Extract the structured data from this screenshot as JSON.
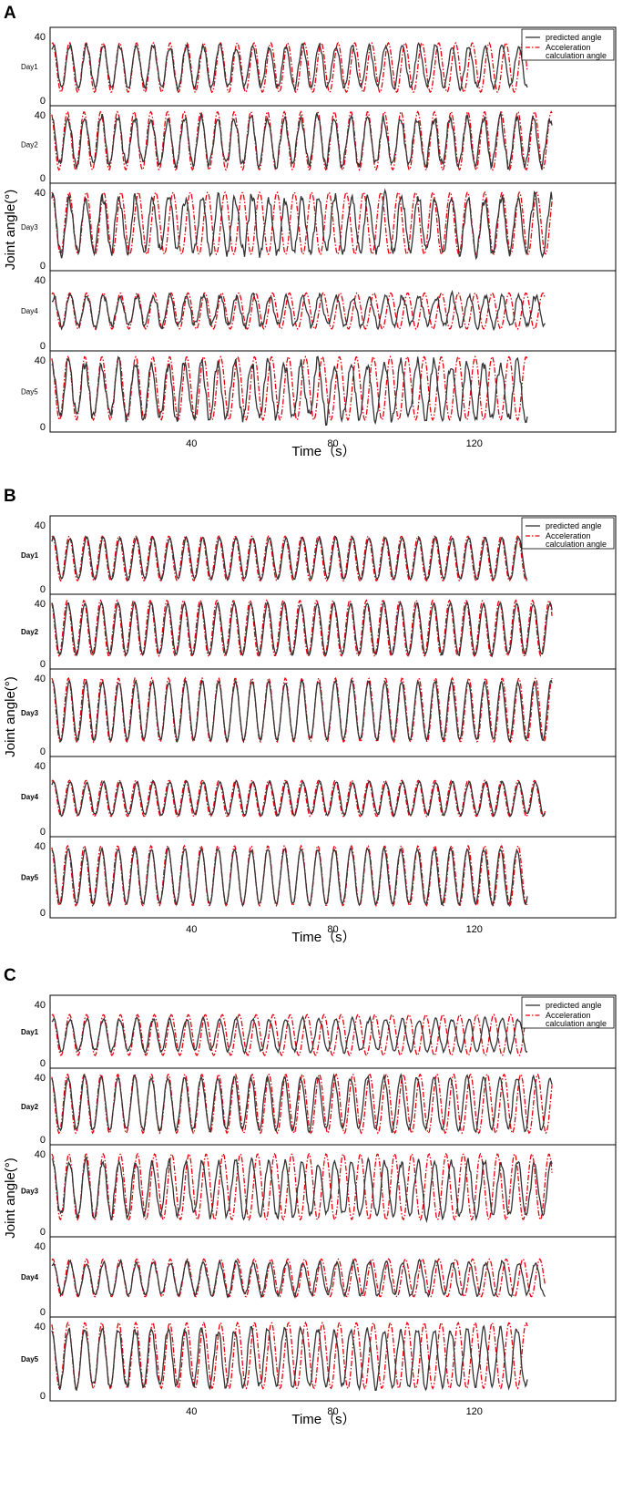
{
  "chart_data": [
    {
      "type": "line",
      "panel_label": "A",
      "xlabel": "Time（s）",
      "ylabel": "Joint angle(°)",
      "xlim": [
        0,
        160
      ],
      "x_ticks": [
        40,
        80,
        120
      ],
      "y_ticks": [
        0,
        40
      ],
      "legend": {
        "position": "top-right",
        "entries": [
          "predicted angle",
          "Acceleration calculation angle"
        ],
        "entry_lines": [
          [
            "predicted angle"
          ],
          [
            "Acceleration",
            "calculation angle"
          ]
        ]
      },
      "series_styles": {
        "predicted": "#333333",
        "calculated": "#e8000b"
      },
      "subplots": [
        {
          "day": "Day1",
          "ylim": [
            0,
            40
          ],
          "period": 4.7,
          "calc_period": 4.75,
          "duration": 135,
          "pred_range": [
            8,
            34
          ],
          "calc_range": [
            5,
            36
          ],
          "noise": 2.5,
          "phase": 0.3
        },
        {
          "day": "Day2",
          "ylim": [
            0,
            40
          ],
          "period": 4.7,
          "calc_period": 4.72,
          "duration": 142,
          "pred_range": [
            8,
            38
          ],
          "calc_range": [
            5,
            42
          ],
          "noise": 4,
          "phase": 1.0
        },
        {
          "day": "Day3",
          "ylim": [
            0,
            40
          ],
          "period": 4.7,
          "calc_period": 4.9,
          "duration": 142,
          "pred_range": [
            7,
            37
          ],
          "calc_range": [
            6,
            40
          ],
          "noise": 4.5,
          "phase": 0.6
        },
        {
          "day": "Day4",
          "ylim": [
            0,
            40
          ],
          "period": 4.7,
          "calc_period": 4.78,
          "duration": 140,
          "pred_range": [
            12,
            30
          ],
          "calc_range": [
            10,
            32
          ],
          "noise": 3,
          "phase": 0.2
        },
        {
          "day": "Day5",
          "ylim": [
            0,
            40
          ],
          "period": 4.7,
          "calc_period": 4.8,
          "duration": 135,
          "pred_range": [
            5,
            38
          ],
          "calc_range": [
            4,
            42
          ],
          "noise": 5,
          "phase": 0.9
        }
      ]
    },
    {
      "type": "line",
      "panel_label": "B",
      "xlabel": "Time（s）",
      "ylabel": "Joint angle(°)",
      "xlim": [
        0,
        160
      ],
      "x_ticks": [
        40,
        80,
        120
      ],
      "y_ticks": [
        0,
        40
      ],
      "legend": {
        "position": "top-right",
        "entries": [
          "predicted angle",
          "Acceleration calculation angle"
        ],
        "entry_lines": [
          [
            "predicted angle"
          ],
          [
            "Acceleration",
            "calculation angle"
          ]
        ]
      },
      "series_styles": {
        "predicted": "#333333",
        "calculated": "#e8000b"
      },
      "subplots": [
        {
          "day": "Day1",
          "ylim": [
            0,
            40
          ],
          "period": 4.7,
          "calc_period": 4.7,
          "duration": 135,
          "pred_range": [
            6,
            32
          ],
          "calc_range": [
            5,
            33
          ],
          "noise": 0.8,
          "phase": 0.3
        },
        {
          "day": "Day2",
          "ylim": [
            0,
            40
          ],
          "period": 4.7,
          "calc_period": 4.7,
          "duration": 142,
          "pred_range": [
            6,
            40
          ],
          "calc_range": [
            5,
            42
          ],
          "noise": 1,
          "phase": 1.0
        },
        {
          "day": "Day3",
          "ylim": [
            0,
            40
          ],
          "period": 4.7,
          "calc_period": 4.72,
          "duration": 142,
          "pred_range": [
            6,
            38
          ],
          "calc_range": [
            5,
            40
          ],
          "noise": 1.2,
          "phase": 0.6
        },
        {
          "day": "Day4",
          "ylim": [
            0,
            40
          ],
          "period": 4.7,
          "calc_period": 4.7,
          "duration": 140,
          "pred_range": [
            10,
            30
          ],
          "calc_range": [
            9,
            31
          ],
          "noise": 1,
          "phase": 0.2
        },
        {
          "day": "Day5",
          "ylim": [
            0,
            40
          ],
          "period": 4.7,
          "calc_period": 4.72,
          "duration": 135,
          "pred_range": [
            5,
            38
          ],
          "calc_range": [
            4,
            40
          ],
          "noise": 1.2,
          "phase": 0.9
        }
      ]
    },
    {
      "type": "line",
      "panel_label": "C",
      "xlabel": "Time（s）",
      "ylabel": "Joint angle(°)",
      "xlim": [
        0,
        160
      ],
      "x_ticks": [
        40,
        80,
        120
      ],
      "y_ticks": [
        0,
        40
      ],
      "legend": {
        "position": "top-right",
        "entries": [
          "predicted angle",
          "Acceleration calculation angle"
        ],
        "entry_lines": [
          [
            "predicted angle"
          ],
          [
            "Acceleration",
            "calculation angle"
          ]
        ]
      },
      "series_styles": {
        "predicted": "#333333",
        "calculated": "#e8000b"
      },
      "subplots": [
        {
          "day": "Day1",
          "ylim": [
            0,
            40
          ],
          "period": 4.7,
          "calc_period": 4.8,
          "duration": 135,
          "pred_range": [
            8,
            30
          ],
          "calc_range": [
            5,
            33
          ],
          "noise": 2,
          "phase": 0.3
        },
        {
          "day": "Day2",
          "ylim": [
            0,
            40
          ],
          "period": 4.7,
          "calc_period": 4.75,
          "duration": 142,
          "pred_range": [
            6,
            40
          ],
          "calc_range": [
            4,
            42
          ],
          "noise": 2.2,
          "phase": 1.0
        },
        {
          "day": "Day3",
          "ylim": [
            0,
            40
          ],
          "period": 4.7,
          "calc_period": 4.85,
          "duration": 142,
          "pred_range": [
            8,
            36
          ],
          "calc_range": [
            6,
            40
          ],
          "noise": 3,
          "phase": 0.6
        },
        {
          "day": "Day4",
          "ylim": [
            0,
            40
          ],
          "period": 4.7,
          "calc_period": 4.75,
          "duration": 140,
          "pred_range": [
            10,
            30
          ],
          "calc_range": [
            9,
            32
          ],
          "noise": 2,
          "phase": 0.2
        },
        {
          "day": "Day5",
          "ylim": [
            0,
            40
          ],
          "period": 4.7,
          "calc_period": 4.8,
          "duration": 135,
          "pred_range": [
            5,
            38
          ],
          "calc_range": [
            4,
            42
          ],
          "noise": 3,
          "phase": 0.9
        }
      ]
    }
  ]
}
